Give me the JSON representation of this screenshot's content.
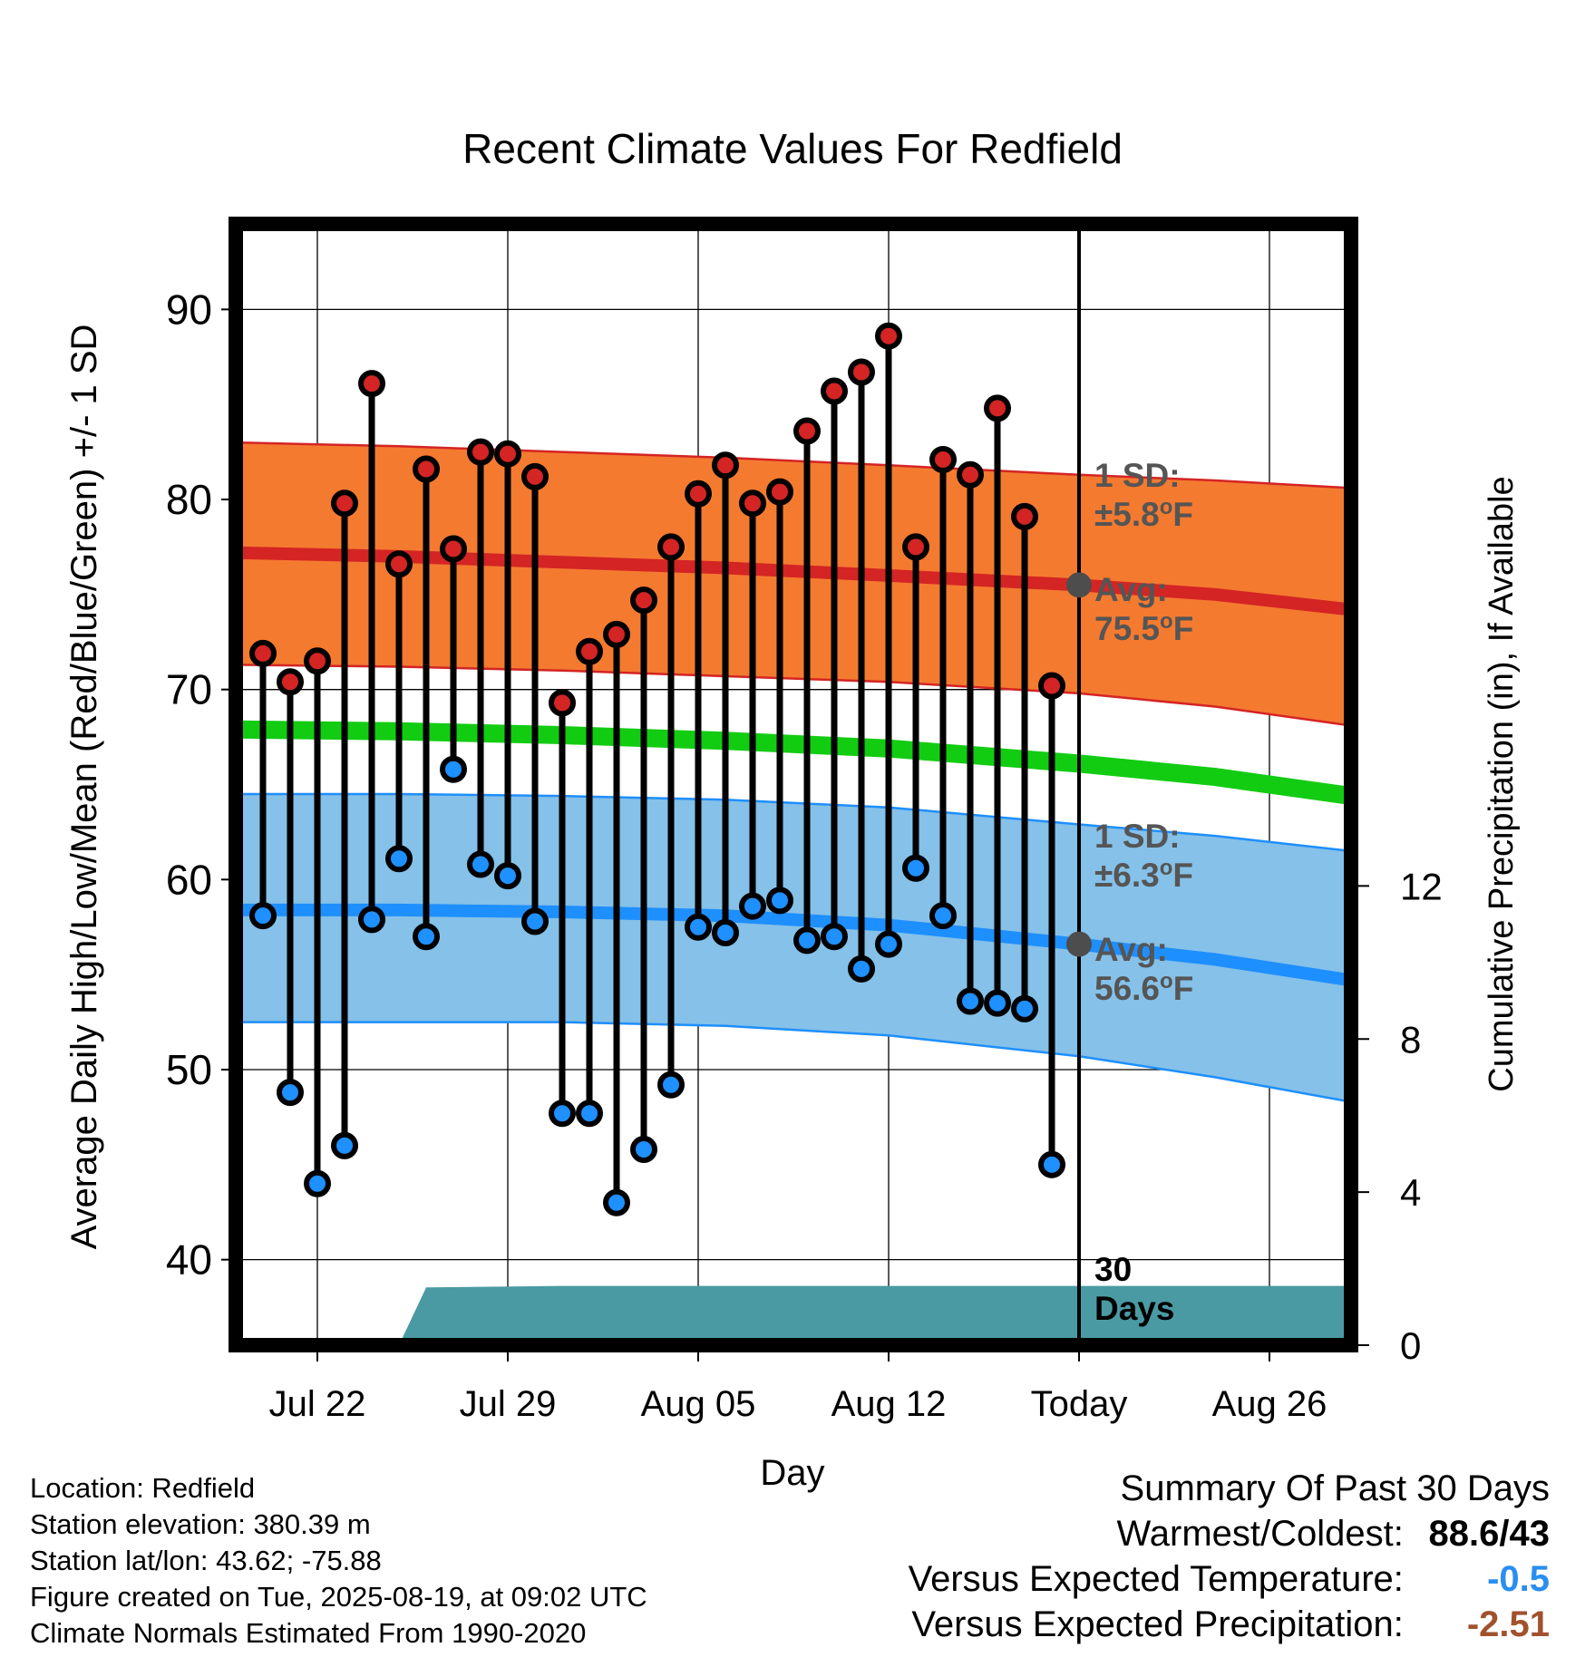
{
  "chart_data": {
    "type": "line",
    "title": "Recent Climate Values For Redfield",
    "xlabel": "Day",
    "ylabel": "Average Daily High/Low/Mean (Red/Blue/Green) +/- 1 SD",
    "y2label": "Cumulative Precipitation (in), If Available",
    "x_range": [
      "2025-07-19",
      "2025-08-29"
    ],
    "ylim": [
      35.5,
      94.5
    ],
    "y2lim": [
      0,
      29.3
    ],
    "yticks": [
      40,
      50,
      60,
      70,
      80,
      90
    ],
    "y2ticks": [
      0,
      4,
      8,
      12
    ],
    "xticks": [
      {
        "date": "2025-07-22",
        "label": "Jul 22"
      },
      {
        "date": "2025-07-29",
        "label": "Jul 29"
      },
      {
        "date": "2025-08-05",
        "label": "Aug 05"
      },
      {
        "date": "2025-08-12",
        "label": "Aug 12"
      },
      {
        "date": "2025-08-19",
        "label": "Today"
      },
      {
        "date": "2025-08-26",
        "label": "Aug 26"
      }
    ],
    "grid": true,
    "today": "2025-08-19",
    "window_label": [
      "30",
      "Days"
    ],
    "dates": [
      "2025-07-20",
      "2025-07-21",
      "2025-07-22",
      "2025-07-23",
      "2025-07-24",
      "2025-07-25",
      "2025-07-26",
      "2025-07-27",
      "2025-07-28",
      "2025-07-29",
      "2025-07-30",
      "2025-07-31",
      "2025-08-01",
      "2025-08-02",
      "2025-08-03",
      "2025-08-04",
      "2025-08-05",
      "2025-08-06",
      "2025-08-07",
      "2025-08-08",
      "2025-08-09",
      "2025-08-10",
      "2025-08-11",
      "2025-08-12",
      "2025-08-13",
      "2025-08-14",
      "2025-08-15",
      "2025-08-16",
      "2025-08-17",
      "2025-08-18"
    ],
    "series": [
      {
        "name": "High",
        "color": "#e02020",
        "values": [
          71.9,
          70.4,
          71.5,
          79.8,
          86.1,
          76.6,
          81.6,
          77.4,
          82.5,
          82.4,
          81.2,
          69.3,
          72.0,
          72.9,
          74.7,
          77.5,
          80.3,
          81.8,
          79.8,
          80.4,
          83.6,
          85.7,
          86.7,
          88.6,
          77.5,
          82.1,
          81.3,
          84.8,
          79.1,
          70.2
        ]
      },
      {
        "name": "Low",
        "color": "#1e90ff",
        "values": [
          58.1,
          48.8,
          44.0,
          46.0,
          57.9,
          61.1,
          57.0,
          65.8,
          60.8,
          60.2,
          57.8,
          47.7,
          47.7,
          43.0,
          45.8,
          49.2,
          57.5,
          57.2,
          58.6,
          58.9,
          56.8,
          57.0,
          55.3,
          56.6,
          60.6,
          58.1,
          53.6,
          53.5,
          53.2,
          45.0
        ]
      }
    ],
    "normals": {
      "dates": [
        "2025-07-19",
        "2025-07-25",
        "2025-07-31",
        "2025-08-06",
        "2025-08-12",
        "2025-08-19",
        "2025-08-24",
        "2025-08-29"
      ],
      "high_mean": [
        77.2,
        77.0,
        76.7,
        76.4,
        76.0,
        75.5,
        75.0,
        74.2
      ],
      "high_upper": [
        83.0,
        82.8,
        82.5,
        82.2,
        81.8,
        81.3,
        81.0,
        80.6
      ],
      "high_lower": [
        71.3,
        71.2,
        71.0,
        70.7,
        70.4,
        69.8,
        69.1,
        68.1
      ],
      "low_mean": [
        58.4,
        58.4,
        58.3,
        58.1,
        57.6,
        56.6,
        55.8,
        54.7
      ],
      "low_upper": [
        64.5,
        64.5,
        64.4,
        64.2,
        63.8,
        62.9,
        62.3,
        61.5
      ],
      "low_lower": [
        52.5,
        52.5,
        52.5,
        52.3,
        51.8,
        50.7,
        49.6,
        48.3
      ],
      "mean": [
        67.9,
        67.8,
        67.6,
        67.3,
        66.9,
        66.1,
        65.4,
        64.4
      ]
    },
    "precip_cumulative": {
      "dates": [
        "2025-07-19",
        "2025-07-25",
        "2025-07-26",
        "2025-07-31",
        "2025-08-12",
        "2025-08-29"
      ],
      "values": [
        0,
        0,
        1.51,
        1.55,
        1.55,
        1.55
      ]
    },
    "annotations": {
      "high_sd": {
        "line1": "1 SD:",
        "line2": "±5.8°F"
      },
      "high_avg": {
        "line1": "Avg:",
        "line2": "75.5°F",
        "value": 75.5
      },
      "low_sd": {
        "line1": "1 SD:",
        "line2": "±6.3°F"
      },
      "low_avg": {
        "line1": "Avg:",
        "line2": "56.6°F",
        "value": 56.6
      }
    },
    "colors": {
      "high_band": "#f47a30",
      "high_line": "#d42424",
      "low_band": "#85c1e8",
      "low_line": "#1e8fff",
      "mean_line": "#12cc12",
      "precip_fill": "#4a9aa3",
      "high_dot": "#d42424",
      "low_dot": "#1e90ff",
      "annotation_text": "#555555",
      "avg_marker": "#4d4d4d"
    }
  },
  "info": {
    "location": "Location: Redfield",
    "elevation": "Station elevation: 380.39 m",
    "latlon": "Station lat/lon: 43.62; -75.88",
    "created": "Figure created on Tue, 2025-08-19, at 09:02 UTC",
    "normals": "Climate Normals Estimated From 1990-2020"
  },
  "summary": {
    "title": "Summary Of Past 30 Days",
    "warm_label": "Warmest/Coldest:",
    "warm_value": "88.6/43",
    "temp_label": "Versus Expected Temperature:",
    "temp_value": "-0.5",
    "temp_color": "#2a8ef0",
    "precip_label": "Versus Expected Precipitation:",
    "precip_value": "-2.51",
    "precip_color": "#a0522d"
  }
}
